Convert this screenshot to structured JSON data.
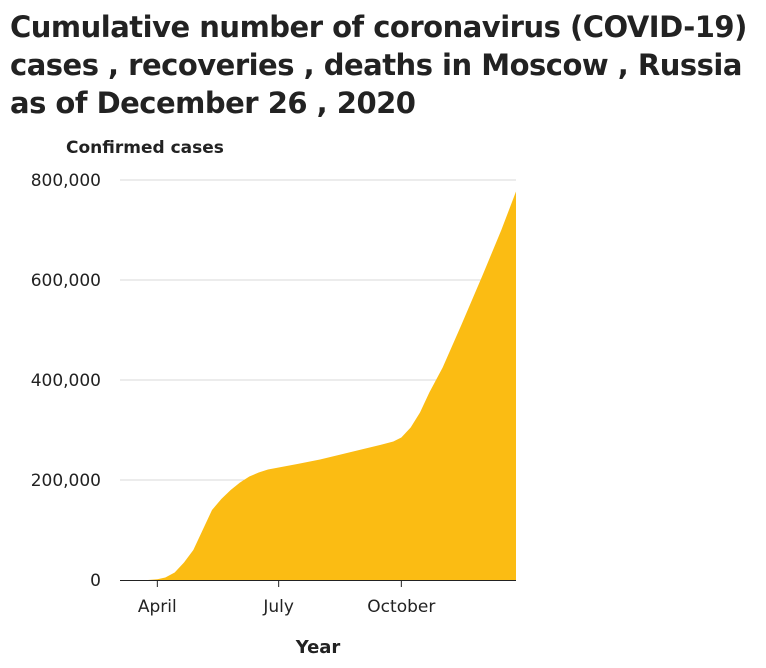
{
  "chart_data": {
    "type": "area",
    "title": "Cumulative number of coronavirus (COVID-19) cases , recoveries , deaths in Moscow , Russia as of December 26 , 2020",
    "xlabel": "Year",
    "ylabel": "Confirmed cases",
    "ylim": [
      0,
      800000
    ],
    "yticks": [
      0,
      200000,
      400000,
      600000,
      800000
    ],
    "ytick_labels": [
      "0",
      "200,000",
      "400,000",
      "600,000",
      "800,000"
    ],
    "xticks": [
      "2020-04-01",
      "2020-07-01",
      "2020-10-01"
    ],
    "xtick_labels": [
      "April",
      "July",
      "October"
    ],
    "xlim": [
      "2020-03-04",
      "2020-12-26"
    ],
    "grid": true,
    "color": "#fbbc13",
    "series": [
      {
        "x": [
          "2020-03-04",
          "2020-03-15",
          "2020-03-25",
          "2020-04-01",
          "2020-04-07",
          "2020-04-14",
          "2020-04-21",
          "2020-04-28",
          "2020-05-05",
          "2020-05-12",
          "2020-05-19",
          "2020-05-26",
          "2020-06-02",
          "2020-06-09",
          "2020-06-16",
          "2020-06-23",
          "2020-07-01",
          "2020-07-15",
          "2020-08-01",
          "2020-08-15",
          "2020-09-01",
          "2020-09-15",
          "2020-09-25",
          "2020-10-01",
          "2020-10-08",
          "2020-10-15",
          "2020-10-22",
          "2020-11-01",
          "2020-11-15",
          "2020-12-01",
          "2020-12-15",
          "2020-12-26"
        ],
        "values": [
          0,
          0,
          100,
          1500,
          5000,
          15000,
          35000,
          60000,
          100000,
          140000,
          162000,
          180000,
          195000,
          207000,
          215000,
          221000,
          225000,
          232000,
          241000,
          250000,
          261000,
          270000,
          277000,
          285000,
          305000,
          335000,
          375000,
          425000,
          510000,
          610000,
          700000,
          777000
        ]
      }
    ]
  }
}
